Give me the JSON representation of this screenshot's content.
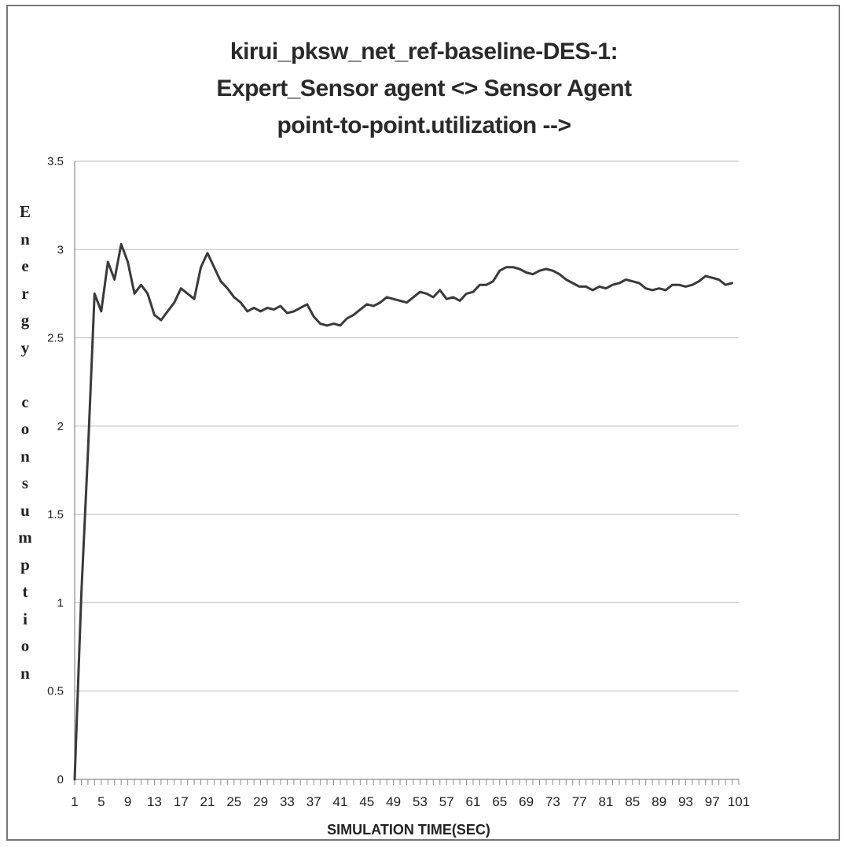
{
  "chart_data": {
    "type": "line",
    "title": [
      "kirui_pksw_net_ref-baseline-DES-1:",
      "Expert_Sensor agent <> Sensor Agent",
      "point-to-point.utilization -->"
    ],
    "xlabel": "SIMULATION TIME(SEC)",
    "ylabel": "Energy consumption",
    "ylabel_letters": [
      "E",
      "n",
      "e",
      "r",
      "g",
      "y",
      "",
      "c",
      "o",
      "n",
      "s",
      "u",
      "m",
      "p",
      "t",
      "i",
      "o",
      "n"
    ],
    "xlim": [
      1,
      101
    ],
    "ylim": [
      0,
      3.5
    ],
    "yticks": [
      0,
      0.5,
      1,
      1.5,
      2,
      2.5,
      3,
      3.5
    ],
    "ytick_labels": [
      "0",
      "0.5",
      "1",
      "1.5",
      "2",
      "2.5",
      "3",
      "3.5"
    ],
    "xticks": [
      1,
      5,
      9,
      13,
      17,
      21,
      25,
      29,
      33,
      37,
      41,
      45,
      49,
      53,
      57,
      61,
      65,
      69,
      73,
      77,
      81,
      85,
      89,
      93,
      97,
      101
    ],
    "xtick_labels": [
      "1",
      "5",
      "9",
      "13",
      "17",
      "21",
      "25",
      "29",
      "33",
      "37",
      "41",
      "45",
      "49",
      "53",
      "57",
      "61",
      "65",
      "69",
      "73",
      "77",
      "81",
      "85",
      "89",
      "93",
      "97",
      "101"
    ],
    "grid": true,
    "legend": "none",
    "line_color": "#3a3a3a",
    "series": [
      {
        "x": [
          1,
          2,
          3,
          4,
          5,
          6,
          7,
          8,
          9,
          10,
          11,
          12,
          13,
          14,
          15,
          16,
          17,
          18,
          19,
          20,
          21,
          22,
          23,
          24,
          25,
          26,
          27,
          28,
          29,
          30,
          31,
          32,
          33,
          34,
          35,
          36,
          37,
          38,
          39,
          40,
          41,
          42,
          43,
          44,
          45,
          46,
          47,
          48,
          49,
          50,
          51,
          52,
          53,
          54,
          55,
          56,
          57,
          58,
          59,
          60,
          61,
          62,
          63,
          64,
          65,
          66,
          67,
          68,
          69,
          70,
          71,
          72,
          73,
          74,
          75,
          76,
          77,
          78,
          79,
          80,
          81,
          82,
          83,
          84,
          85,
          86,
          87,
          88,
          89,
          90,
          91,
          92,
          93,
          94,
          95,
          96,
          97,
          98,
          99,
          100
        ],
        "y": [
          0,
          1.05,
          1.85,
          2.75,
          2.65,
          2.93,
          2.83,
          3.03,
          2.93,
          2.75,
          2.8,
          2.75,
          2.63,
          2.6,
          2.65,
          2.7,
          2.78,
          2.75,
          2.72,
          2.9,
          2.98,
          2.9,
          2.82,
          2.78,
          2.73,
          2.7,
          2.65,
          2.67,
          2.65,
          2.67,
          2.66,
          2.68,
          2.64,
          2.65,
          2.67,
          2.69,
          2.62,
          2.58,
          2.57,
          2.58,
          2.57,
          2.61,
          2.63,
          2.66,
          2.69,
          2.68,
          2.7,
          2.73,
          2.72,
          2.71,
          2.7,
          2.73,
          2.76,
          2.75,
          2.73,
          2.77,
          2.72,
          2.73,
          2.71,
          2.75,
          2.76,
          2.8,
          2.8,
          2.82,
          2.88,
          2.9,
          2.9,
          2.89,
          2.87,
          2.86,
          2.88,
          2.89,
          2.88,
          2.86,
          2.83,
          2.81,
          2.79,
          2.79,
          2.77,
          2.79,
          2.78,
          2.8,
          2.81,
          2.83,
          2.82,
          2.81,
          2.78,
          2.77,
          2.78,
          2.77,
          2.8,
          2.8,
          2.79,
          2.8,
          2.82,
          2.85,
          2.84,
          2.83,
          2.8,
          2.81
        ]
      }
    ]
  }
}
